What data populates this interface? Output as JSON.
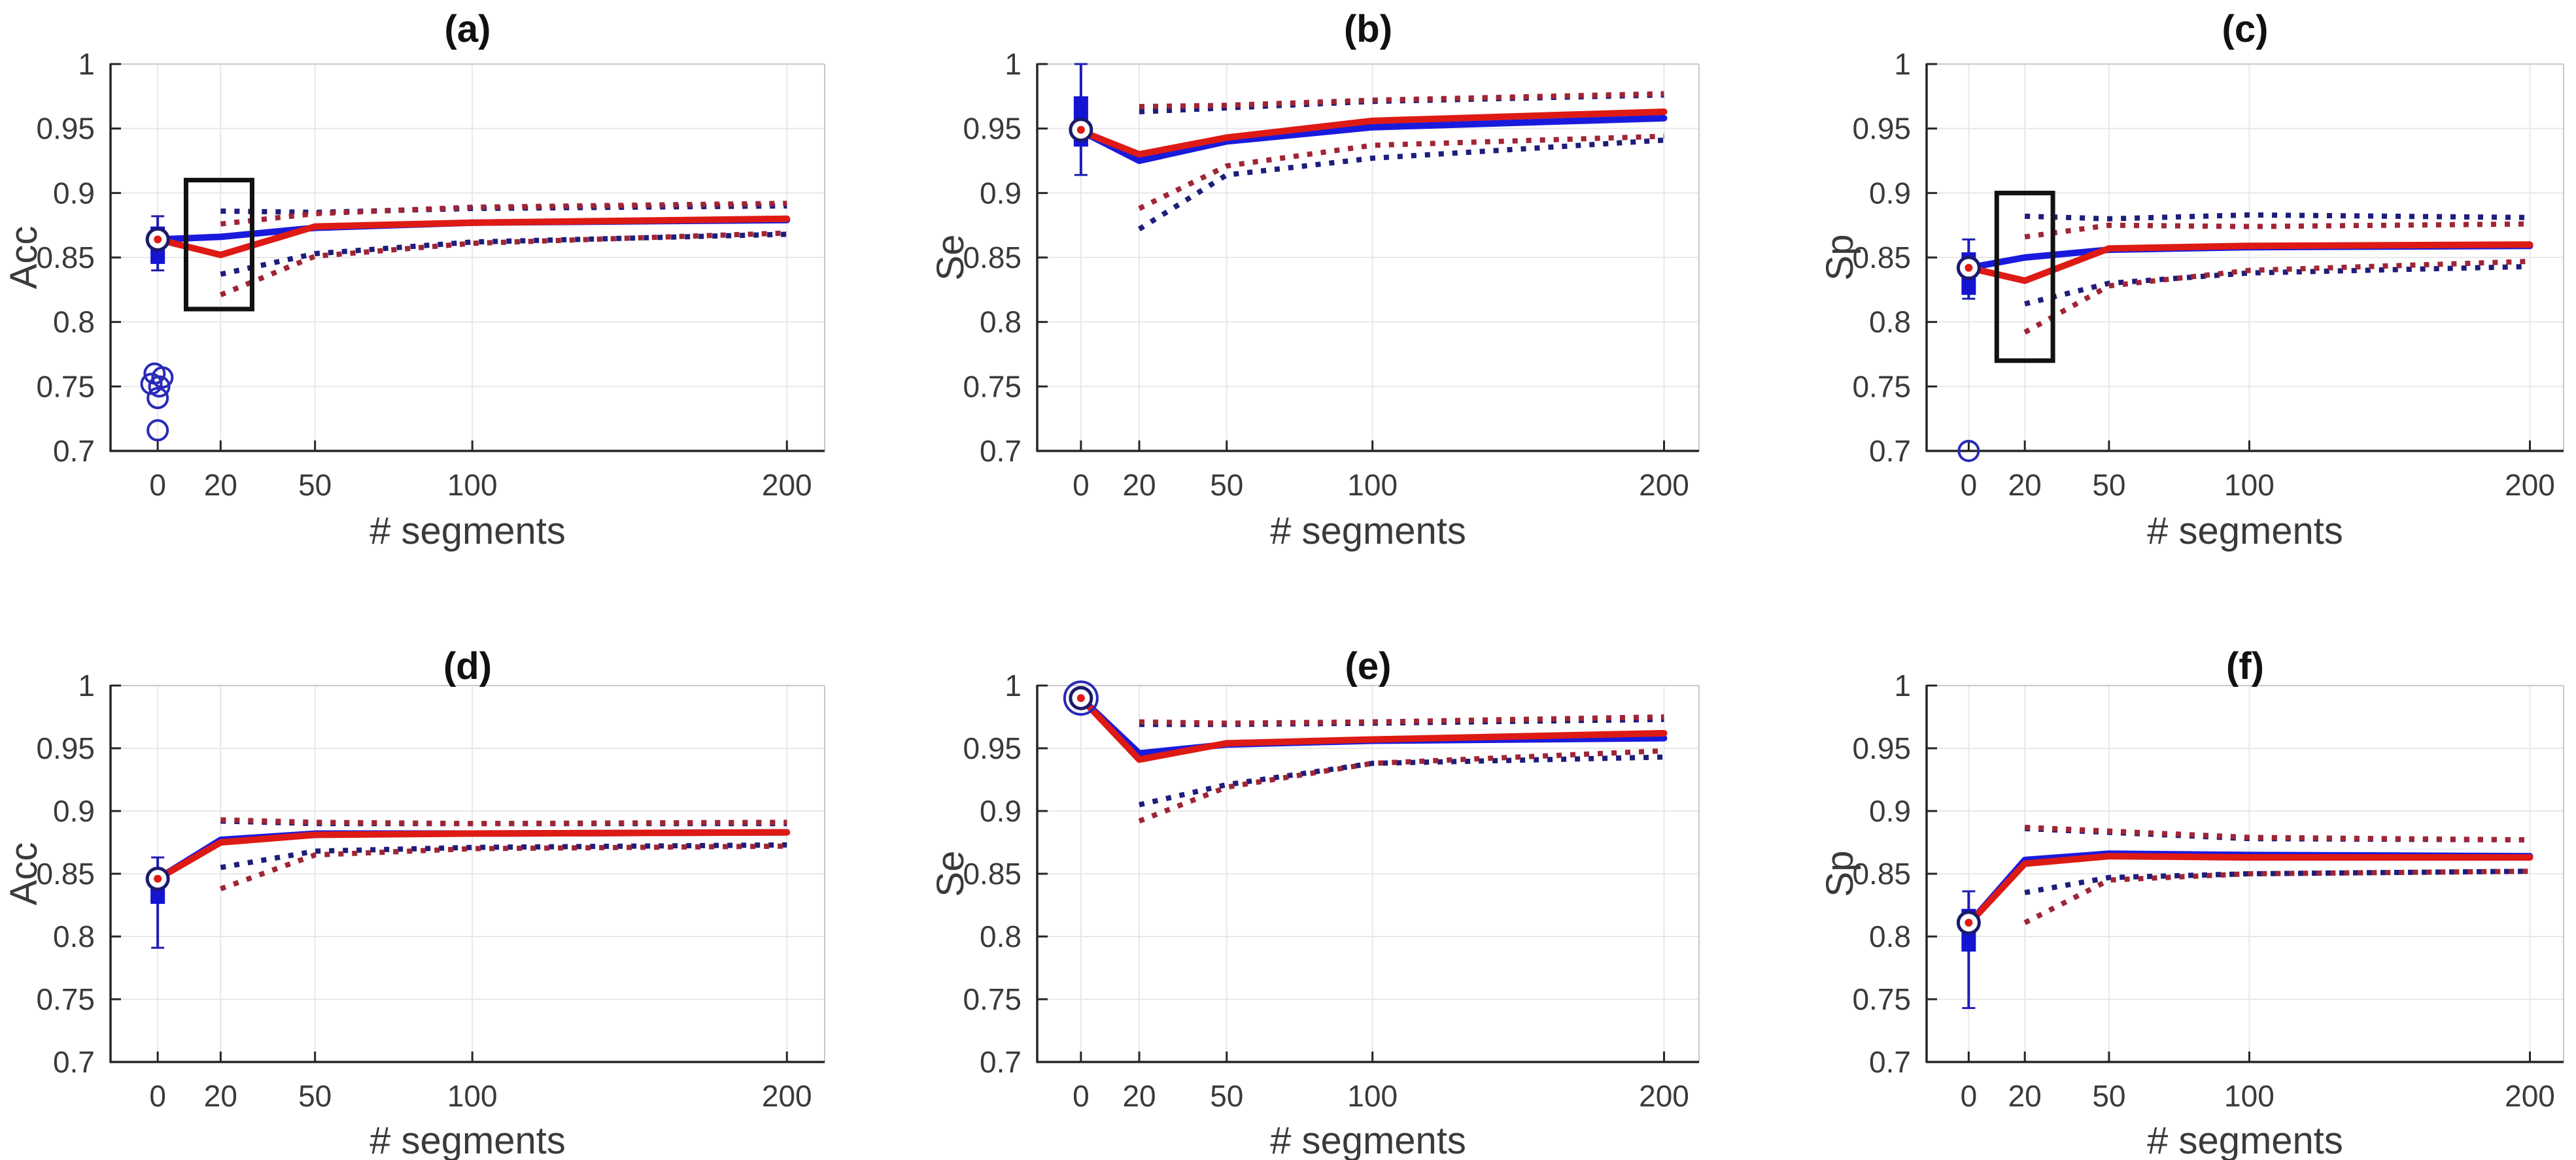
{
  "figure": {
    "background": "#ffffff",
    "xlabel": "# segments",
    "xticks": [
      0,
      20,
      50,
      100,
      200
    ],
    "xtick_labels": [
      "0",
      "20",
      "50",
      "100",
      "200"
    ],
    "ytick_labels": [
      "0.7",
      "0.75",
      "0.8",
      "0.85",
      "0.9",
      "0.95",
      "1"
    ],
    "yticks": [
      0.7,
      0.75,
      0.8,
      0.85,
      0.9,
      0.95,
      1.0
    ],
    "xlim": [
      -15,
      212
    ],
    "ylim": [
      0.7,
      1.0
    ]
  },
  "colors": {
    "blue_solid": "#1a1add",
    "red_solid": "#de1a14",
    "blue_dotted": "#1d1d7c",
    "red_dotted": "#a02535",
    "box_fill": "#1414d2",
    "whisker": "#1e1eb4",
    "outlier": "#2929b8",
    "marker_ring": "#1a1a6e",
    "marker_fill": "#ffffff",
    "marker_dot": "#de1a14",
    "grid": "#e8e8e8",
    "spine_dark": "#262626",
    "spine_light": "#c9c9c9",
    "annotation": "#111111"
  },
  "chart_data": [
    {
      "id": "a",
      "type": "line",
      "title": "(a)",
      "ylabel": "Acc",
      "xlabel": "# segments",
      "x": [
        0,
        20,
        50,
        100,
        200
      ],
      "series": [
        {
          "name": "blue-dotted-upper",
          "style": "dotted",
          "color_key": "blue_dotted",
          "x": [
            20,
            50,
            100,
            200
          ],
          "values": [
            0.886,
            0.885,
            0.888,
            0.89
          ]
        },
        {
          "name": "red-dotted-upper",
          "style": "dotted",
          "color_key": "red_dotted",
          "x": [
            20,
            50,
            100,
            200
          ],
          "values": [
            0.876,
            0.884,
            0.889,
            0.892
          ]
        },
        {
          "name": "blue-dotted-lower",
          "style": "dotted",
          "color_key": "blue_dotted",
          "x": [
            20,
            50,
            100,
            200
          ],
          "values": [
            0.837,
            0.853,
            0.862,
            0.868
          ]
        },
        {
          "name": "red-dotted-lower",
          "style": "dotted",
          "color_key": "red_dotted",
          "x": [
            20,
            50,
            100,
            200
          ],
          "values": [
            0.821,
            0.851,
            0.861,
            0.869
          ]
        },
        {
          "name": "blue-solid",
          "style": "solid",
          "color_key": "blue_solid",
          "x": [
            0,
            20,
            50,
            100,
            200
          ],
          "values": [
            0.864,
            0.866,
            0.873,
            0.877,
            0.879
          ]
        },
        {
          "name": "red-solid",
          "style": "solid",
          "color_key": "red_solid",
          "x": [
            0,
            20,
            50,
            100,
            200
          ],
          "values": [
            0.864,
            0.852,
            0.874,
            0.877,
            0.88
          ]
        }
      ],
      "boxplot": {
        "x": 0,
        "q1": 0.845,
        "q3": 0.874,
        "whisker_low": 0.84,
        "whisker_high": 0.882,
        "mean": 0.864,
        "outliers": [
          [
            -1,
            0.76
          ],
          [
            1.5,
            0.757
          ],
          [
            -2,
            0.752
          ],
          [
            0.5,
            0.75
          ],
          [
            0,
            0.741
          ],
          [
            0,
            0.716
          ]
        ]
      },
      "highlight_rect": {
        "x0": 9,
        "x1": 30,
        "y0": 0.81,
        "y1": 0.91
      },
      "open_circle_at_mean": false
    },
    {
      "id": "b",
      "type": "line",
      "title": "(b)",
      "ylabel": "Se",
      "xlabel": "# segments",
      "x": [
        0,
        20,
        50,
        100,
        200
      ],
      "series": [
        {
          "name": "blue-dotted-upper",
          "style": "dotted",
          "color_key": "blue_dotted",
          "x": [
            20,
            50,
            100,
            200
          ],
          "values": [
            0.963,
            0.966,
            0.971,
            0.976
          ]
        },
        {
          "name": "red-dotted-upper",
          "style": "dotted",
          "color_key": "red_dotted",
          "x": [
            20,
            50,
            100,
            200
          ],
          "values": [
            0.967,
            0.968,
            0.972,
            0.977
          ]
        },
        {
          "name": "blue-dotted-lower",
          "style": "dotted",
          "color_key": "blue_dotted",
          "x": [
            20,
            50,
            100,
            200
          ],
          "values": [
            0.872,
            0.914,
            0.927,
            0.941
          ]
        },
        {
          "name": "red-dotted-lower",
          "style": "dotted",
          "color_key": "red_dotted",
          "x": [
            20,
            50,
            100,
            200
          ],
          "values": [
            0.888,
            0.921,
            0.937,
            0.944
          ]
        },
        {
          "name": "blue-solid",
          "style": "solid",
          "color_key": "blue_solid",
          "x": [
            0,
            20,
            50,
            100,
            200
          ],
          "values": [
            0.948,
            0.925,
            0.94,
            0.951,
            0.958
          ]
        },
        {
          "name": "red-solid",
          "style": "solid",
          "color_key": "red_solid",
          "x": [
            0,
            20,
            50,
            100,
            200
          ],
          "values": [
            0.948,
            0.93,
            0.943,
            0.956,
            0.963
          ]
        }
      ],
      "boxplot": {
        "x": 0,
        "q1": 0.936,
        "q3": 0.975,
        "whisker_low": 0.914,
        "whisker_high": 1.0,
        "mean": 0.949,
        "outliers": []
      },
      "highlight_rect": null,
      "open_circle_at_mean": false
    },
    {
      "id": "c",
      "type": "line",
      "title": "(c)",
      "ylabel": "Sp",
      "xlabel": "# segments",
      "x": [
        0,
        20,
        50,
        100,
        200
      ],
      "series": [
        {
          "name": "blue-dotted-upper",
          "style": "dotted",
          "color_key": "blue_dotted",
          "x": [
            20,
            50,
            100,
            200
          ],
          "values": [
            0.882,
            0.88,
            0.883,
            0.881
          ]
        },
        {
          "name": "red-dotted-upper",
          "style": "dotted",
          "color_key": "red_dotted",
          "x": [
            20,
            50,
            100,
            200
          ],
          "values": [
            0.866,
            0.875,
            0.874,
            0.876
          ]
        },
        {
          "name": "blue-dotted-lower",
          "style": "dotted",
          "color_key": "blue_dotted",
          "x": [
            20,
            50,
            100,
            200
          ],
          "values": [
            0.814,
            0.83,
            0.838,
            0.843
          ]
        },
        {
          "name": "red-dotted-lower",
          "style": "dotted",
          "color_key": "red_dotted",
          "x": [
            20,
            50,
            100,
            200
          ],
          "values": [
            0.792,
            0.828,
            0.84,
            0.847
          ]
        },
        {
          "name": "blue-solid",
          "style": "solid",
          "color_key": "blue_solid",
          "x": [
            0,
            20,
            50,
            100,
            200
          ],
          "values": [
            0.842,
            0.85,
            0.856,
            0.858,
            0.859
          ]
        },
        {
          "name": "red-solid",
          "style": "solid",
          "color_key": "red_solid",
          "x": [
            0,
            20,
            50,
            100,
            200
          ],
          "values": [
            0.842,
            0.832,
            0.857,
            0.859,
            0.86
          ]
        }
      ],
      "boxplot": {
        "x": 0,
        "q1": 0.821,
        "q3": 0.854,
        "whisker_low": 0.818,
        "whisker_high": 0.864,
        "mean": 0.842,
        "outliers": [
          [
            0,
            0.7
          ]
        ]
      },
      "highlight_rect": {
        "x0": 10,
        "x1": 30,
        "y0": 0.77,
        "y1": 0.9
      },
      "open_circle_at_mean": false
    },
    {
      "id": "d",
      "type": "line",
      "title": "(d)",
      "ylabel": "Acc",
      "xlabel": "# segments",
      "x": [
        0,
        20,
        50,
        100,
        200
      ],
      "series": [
        {
          "name": "blue-dotted-upper",
          "style": "dotted",
          "color_key": "blue_dotted",
          "x": [
            20,
            50,
            100,
            200
          ],
          "values": [
            0.892,
            0.89,
            0.89,
            0.89
          ]
        },
        {
          "name": "red-dotted-upper",
          "style": "dotted",
          "color_key": "red_dotted",
          "x": [
            20,
            50,
            100,
            200
          ],
          "values": [
            0.893,
            0.891,
            0.89,
            0.891
          ]
        },
        {
          "name": "blue-dotted-lower",
          "style": "dotted",
          "color_key": "blue_dotted",
          "x": [
            20,
            50,
            100,
            200
          ],
          "values": [
            0.855,
            0.868,
            0.871,
            0.873
          ]
        },
        {
          "name": "red-dotted-lower",
          "style": "dotted",
          "color_key": "red_dotted",
          "x": [
            20,
            50,
            100,
            200
          ],
          "values": [
            0.838,
            0.865,
            0.87,
            0.872
          ]
        },
        {
          "name": "blue-solid",
          "style": "solid",
          "color_key": "blue_solid",
          "x": [
            0,
            20,
            50,
            100,
            200
          ],
          "values": [
            0.846,
            0.877,
            0.882,
            0.882,
            0.883
          ]
        },
        {
          "name": "red-solid",
          "style": "solid",
          "color_key": "red_solid",
          "x": [
            0,
            20,
            50,
            100,
            200
          ],
          "values": [
            0.846,
            0.875,
            0.881,
            0.882,
            0.883
          ]
        }
      ],
      "boxplot": {
        "x": 0,
        "q1": 0.826,
        "q3": 0.851,
        "whisker_low": 0.791,
        "whisker_high": 0.863,
        "mean": 0.846,
        "outliers": []
      },
      "highlight_rect": null,
      "open_circle_at_mean": false
    },
    {
      "id": "e",
      "type": "line",
      "title": "(e)",
      "ylabel": "Se",
      "xlabel": "# segments",
      "x": [
        0,
        20,
        50,
        100,
        200
      ],
      "series": [
        {
          "name": "blue-dotted-upper",
          "style": "dotted",
          "color_key": "blue_dotted",
          "x": [
            20,
            50,
            100,
            200
          ],
          "values": [
            0.969,
            0.969,
            0.97,
            0.973
          ]
        },
        {
          "name": "red-dotted-upper",
          "style": "dotted",
          "color_key": "red_dotted",
          "x": [
            20,
            50,
            100,
            200
          ],
          "values": [
            0.971,
            0.97,
            0.971,
            0.975
          ]
        },
        {
          "name": "blue-dotted-lower",
          "style": "dotted",
          "color_key": "blue_dotted",
          "x": [
            20,
            50,
            100,
            200
          ],
          "values": [
            0.905,
            0.921,
            0.938,
            0.943
          ]
        },
        {
          "name": "red-dotted-lower",
          "style": "dotted",
          "color_key": "red_dotted",
          "x": [
            20,
            50,
            100,
            200
          ],
          "values": [
            0.892,
            0.919,
            0.938,
            0.948
          ]
        },
        {
          "name": "blue-solid",
          "style": "solid",
          "color_key": "blue_solid",
          "x": [
            0,
            20,
            50,
            100,
            200
          ],
          "values": [
            0.99,
            0.946,
            0.953,
            0.956,
            0.958
          ]
        },
        {
          "name": "red-solid",
          "style": "solid",
          "color_key": "red_solid",
          "x": [
            0,
            20,
            50,
            100,
            200
          ],
          "values": [
            0.99,
            0.941,
            0.954,
            0.957,
            0.962
          ]
        }
      ],
      "boxplot": {
        "x": 0,
        "q1": 0.988,
        "q3": 0.992,
        "whisker_low": 0.985,
        "whisker_high": 0.995,
        "mean": 0.99,
        "outliers": []
      },
      "highlight_rect": null,
      "open_circle_at_mean": true
    },
    {
      "id": "f",
      "type": "line",
      "title": "(f)",
      "ylabel": "Sp",
      "xlabel": "# segments",
      "x": [
        0,
        20,
        50,
        100,
        200
      ],
      "series": [
        {
          "name": "blue-dotted-upper",
          "style": "dotted",
          "color_key": "blue_dotted",
          "x": [
            20,
            50,
            100,
            200
          ],
          "values": [
            0.886,
            0.883,
            0.878,
            0.877
          ]
        },
        {
          "name": "red-dotted-upper",
          "style": "dotted",
          "color_key": "red_dotted",
          "x": [
            20,
            50,
            100,
            200
          ],
          "values": [
            0.887,
            0.884,
            0.879,
            0.877
          ]
        },
        {
          "name": "blue-dotted-lower",
          "style": "dotted",
          "color_key": "blue_dotted",
          "x": [
            20,
            50,
            100,
            200
          ],
          "values": [
            0.835,
            0.847,
            0.85,
            0.852
          ]
        },
        {
          "name": "red-dotted-lower",
          "style": "dotted",
          "color_key": "red_dotted",
          "x": [
            20,
            50,
            100,
            200
          ],
          "values": [
            0.811,
            0.845,
            0.85,
            0.852
          ]
        },
        {
          "name": "blue-solid",
          "style": "solid",
          "color_key": "blue_solid",
          "x": [
            0,
            20,
            50,
            100,
            200
          ],
          "values": [
            0.81,
            0.861,
            0.866,
            0.865,
            0.864
          ]
        },
        {
          "name": "red-solid",
          "style": "solid",
          "color_key": "red_solid",
          "x": [
            0,
            20,
            50,
            100,
            200
          ],
          "values": [
            0.81,
            0.858,
            0.864,
            0.863,
            0.863
          ]
        }
      ],
      "boxplot": {
        "x": 0,
        "q1": 0.788,
        "q3": 0.822,
        "whisker_low": 0.743,
        "whisker_high": 0.836,
        "mean": 0.811,
        "outliers": []
      },
      "highlight_rect": null,
      "open_circle_at_mean": false
    }
  ]
}
